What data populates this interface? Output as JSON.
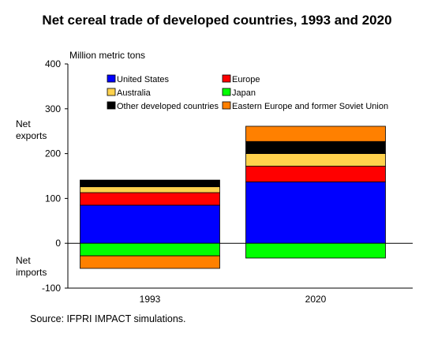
{
  "chart_data": {
    "type": "bar",
    "stacked": true,
    "title": "Net cereal trade of developed countries, 1993 and 2020",
    "ylabel": "Million metric tons",
    "upper_label": "Net exports",
    "lower_label": "Net imports",
    "source": "Source:   IFPRI IMPACT simulations.",
    "categories": [
      "1993",
      "2020"
    ],
    "ylim": [
      -100,
      400
    ],
    "yticks": [
      -100,
      0,
      100,
      200,
      300,
      400
    ],
    "legend_position": "top",
    "series": [
      {
        "name": "United States",
        "color": "#0000ff",
        "values": [
          85,
          137
        ]
      },
      {
        "name": "Europe",
        "color": "#ff0000",
        "values": [
          28,
          35
        ]
      },
      {
        "name": "Australia",
        "color": "#ffd24d",
        "values": [
          13,
          28
        ]
      },
      {
        "name": "Japan",
        "color": "#00ff00",
        "values": [
          -28,
          -33
        ]
      },
      {
        "name": "Other developed countries",
        "color": "#000000",
        "values": [
          15,
          27
        ]
      },
      {
        "name": "Eastern Europe and former Soviet Union",
        "color": "#ff8000",
        "values": [
          -28,
          34
        ]
      }
    ]
  }
}
